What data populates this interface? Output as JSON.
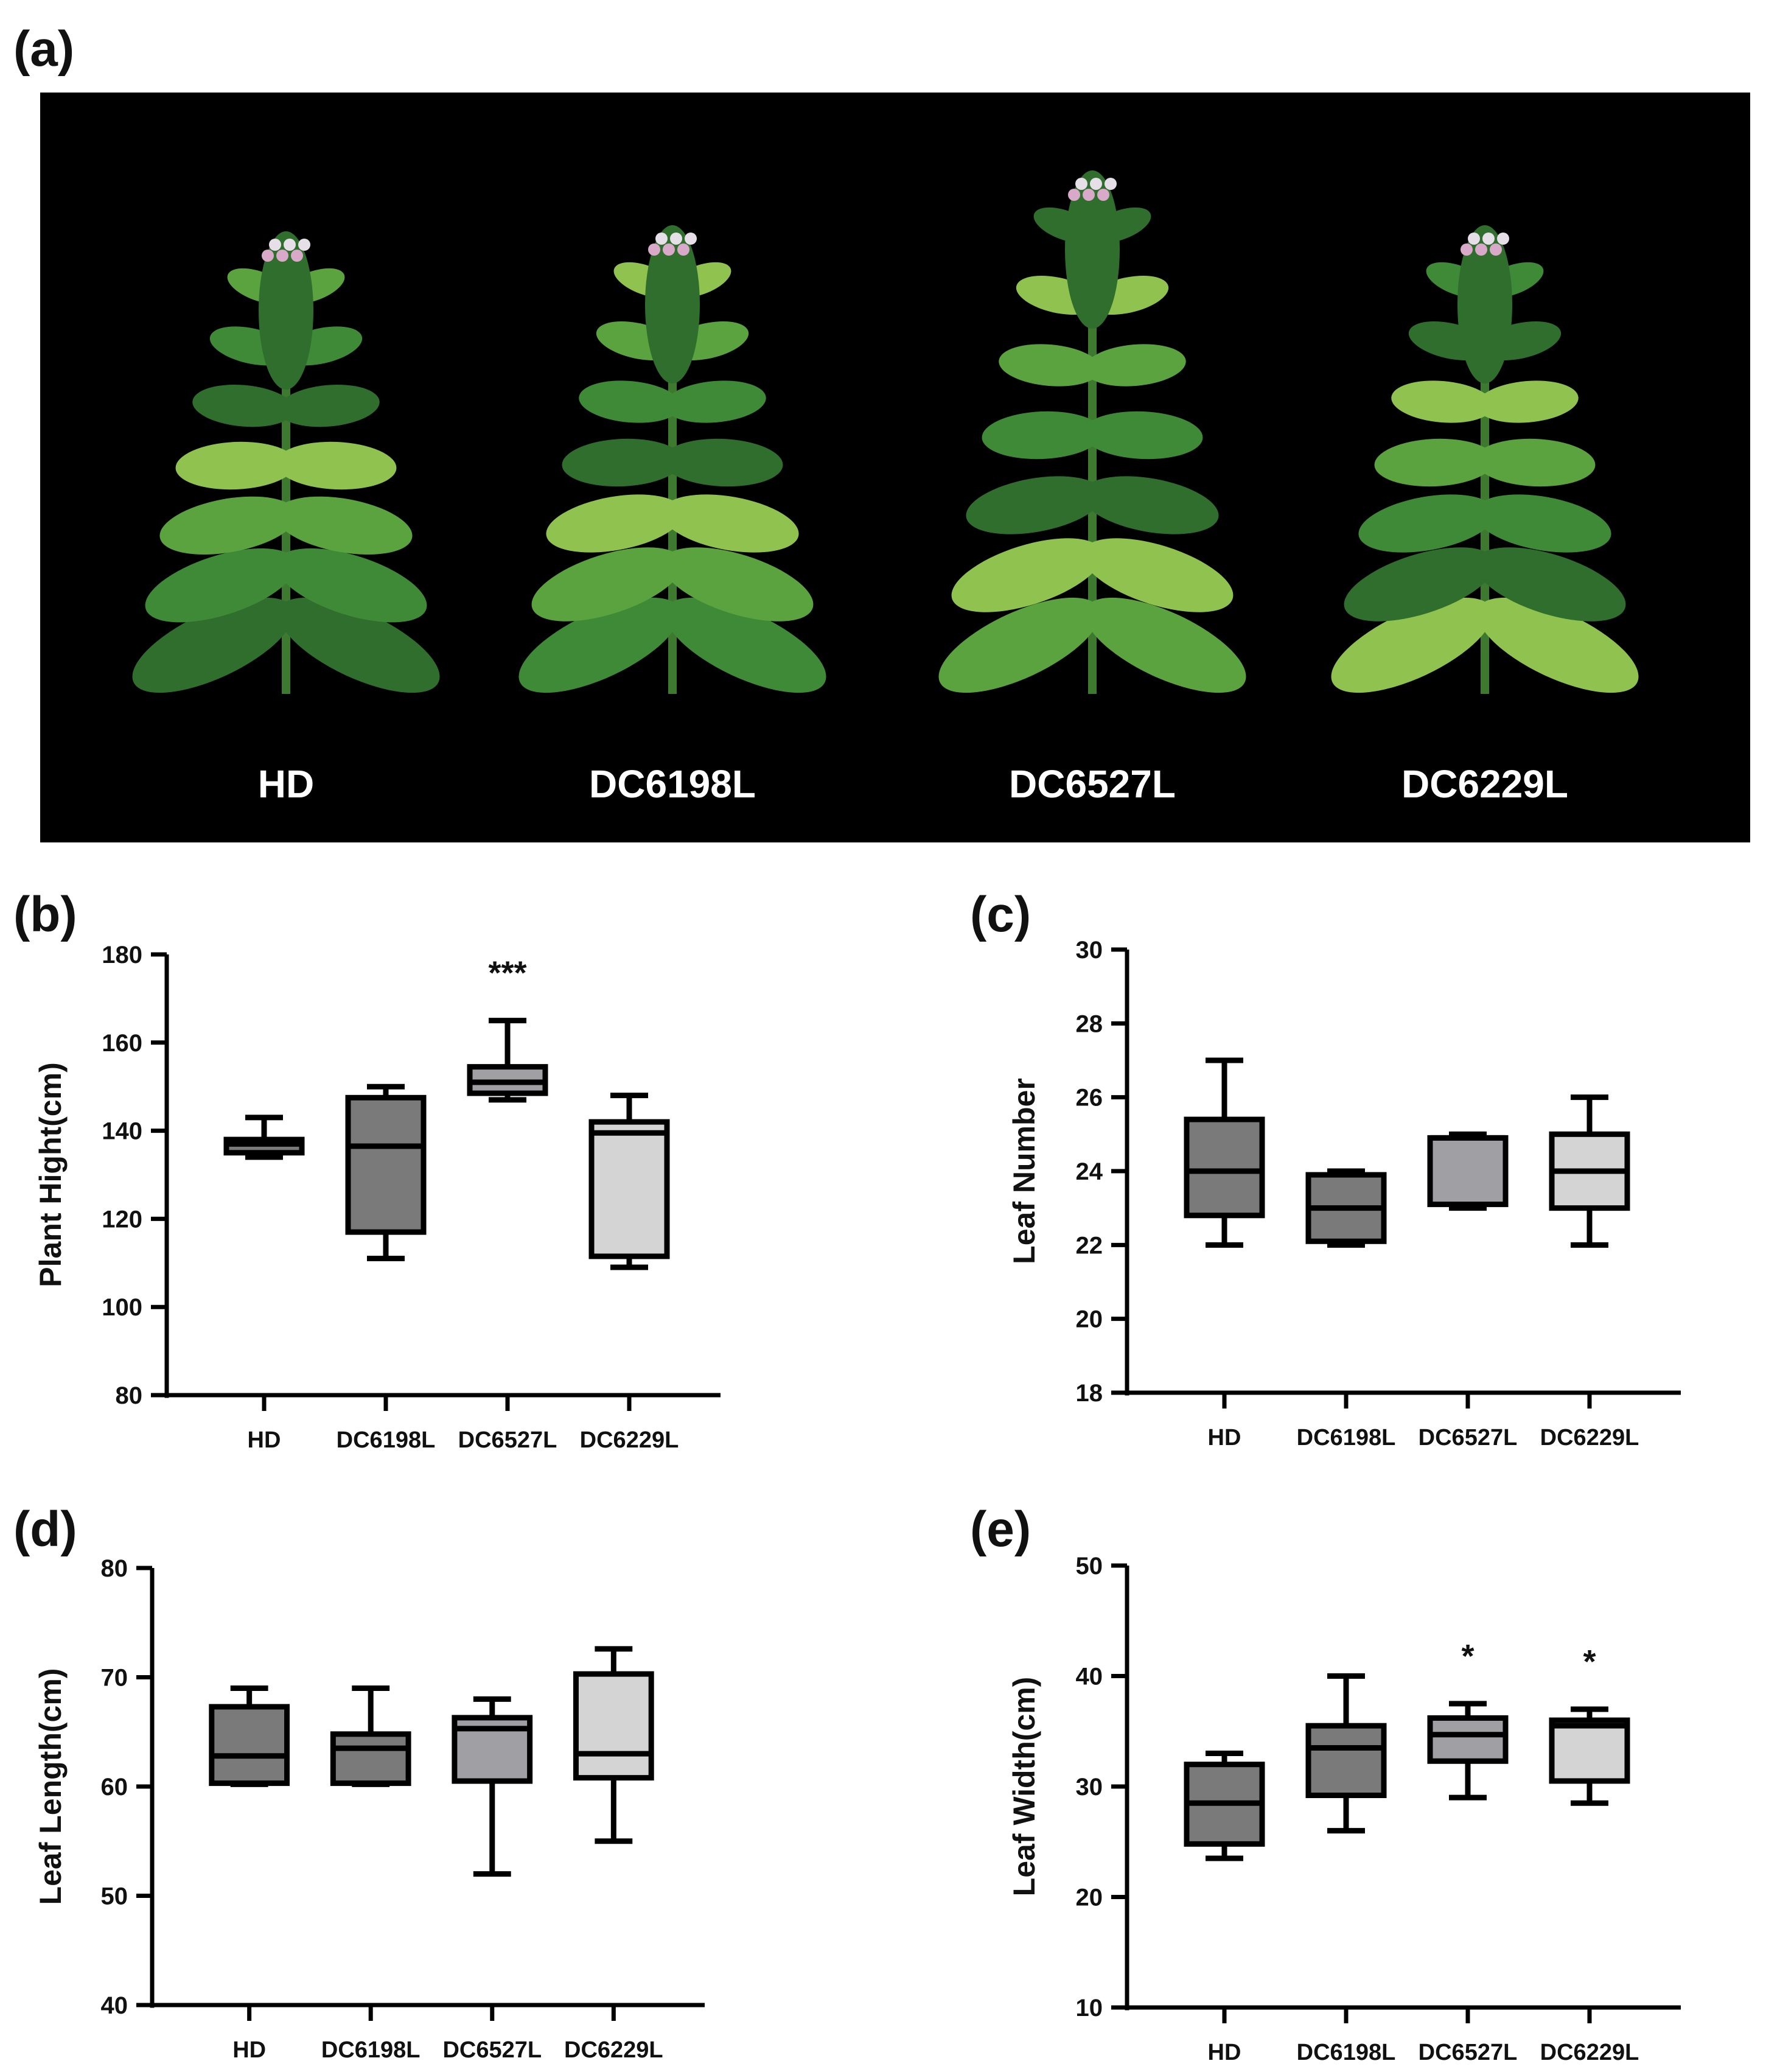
{
  "photo_panel": {
    "letter": "(a)",
    "labels": [
      "HD",
      "DC6198L",
      "DC6527L",
      "DC6229L"
    ],
    "background_color": "#000000",
    "leaf_colors": [
      "#2f6e2c",
      "#3f8a36",
      "#5aa33f",
      "#8fc24e"
    ]
  },
  "chart_data": [
    {
      "panel": "(b)",
      "type": "box",
      "categories": [
        "HD",
        "DC6198L",
        "DC6527L",
        "DC6229L"
      ],
      "ylabel": "Plant Hight(cm)",
      "ylim": [
        80,
        180
      ],
      "yticks": [
        80,
        100,
        120,
        140,
        160,
        180
      ],
      "boxes": [
        {
          "min": 134,
          "q1": 135,
          "median": 137,
          "q3": 138,
          "max": 143,
          "fill": "#7a7a7a",
          "sig": ""
        },
        {
          "min": 111,
          "q1": 117,
          "median": 136.5,
          "q3": 147.5,
          "max": 150,
          "fill": "#7a7a7a",
          "sig": ""
        },
        {
          "min": 147,
          "q1": 148.5,
          "median": 151,
          "q3": 154.5,
          "max": 165,
          "fill": "#a0a0a4",
          "sig": "***"
        },
        {
          "min": 109,
          "q1": 111.5,
          "median": 139.5,
          "q3": 142,
          "max": 148,
          "fill": "#d4d4d4",
          "sig": ""
        }
      ]
    },
    {
      "panel": "(c)",
      "type": "box",
      "categories": [
        "HD",
        "DC6198L",
        "DC6527L",
        "DC6229L"
      ],
      "ylabel": "Leaf Number",
      "ylim": [
        18,
        30
      ],
      "yticks": [
        18,
        20,
        22,
        24,
        26,
        28,
        30
      ],
      "boxes": [
        {
          "min": 22,
          "q1": 22.8,
          "median": 24,
          "q3": 25.4,
          "max": 27,
          "fill": "#7a7a7a",
          "sig": ""
        },
        {
          "min": 22,
          "q1": 22.1,
          "median": 23,
          "q3": 23.9,
          "max": 24,
          "fill": "#7a7a7a",
          "sig": ""
        },
        {
          "min": 23,
          "q1": 23.1,
          "median": 24.9,
          "q3": 24.9,
          "max": 25,
          "fill": "#a0a0a4",
          "sig": ""
        },
        {
          "min": 22,
          "q1": 23,
          "median": 24,
          "q3": 25,
          "max": 26,
          "fill": "#d4d4d4",
          "sig": ""
        }
      ]
    },
    {
      "panel": "(d)",
      "type": "box",
      "categories": [
        "HD",
        "DC6198L",
        "DC6527L",
        "DC6229L"
      ],
      "ylabel": "Leaf Length(cm)",
      "ylim": [
        40,
        80
      ],
      "yticks": [
        40,
        50,
        60,
        70,
        80
      ],
      "boxes": [
        {
          "min": 60.2,
          "q1": 60.3,
          "median": 62.8,
          "q3": 67.3,
          "max": 69,
          "fill": "#7a7a7a",
          "sig": ""
        },
        {
          "min": 60.2,
          "q1": 60.3,
          "median": 63.5,
          "q3": 64.8,
          "max": 69,
          "fill": "#7a7a7a",
          "sig": ""
        },
        {
          "min": 52,
          "q1": 60.5,
          "median": 65.3,
          "q3": 66.3,
          "max": 68,
          "fill": "#a0a0a4",
          "sig": ""
        },
        {
          "min": 55,
          "q1": 60.8,
          "median": 63,
          "q3": 70.3,
          "max": 72.6,
          "fill": "#d4d4d4",
          "sig": ""
        }
      ]
    },
    {
      "panel": "(e)",
      "type": "box",
      "categories": [
        "HD",
        "DC6198L",
        "DC6527L",
        "DC6229L"
      ],
      "ylabel": "Leaf Width(cm)",
      "ylim": [
        10,
        50
      ],
      "yticks": [
        10,
        20,
        30,
        40,
        50
      ],
      "boxes": [
        {
          "min": 23.5,
          "q1": 24.8,
          "median": 28.5,
          "q3": 32,
          "max": 33,
          "fill": "#7a7a7a",
          "sig": ""
        },
        {
          "min": 26,
          "q1": 29.2,
          "median": 33.5,
          "q3": 35.5,
          "max": 40,
          "fill": "#7a7a7a",
          "sig": ""
        },
        {
          "min": 29,
          "q1": 32.3,
          "median": 34.7,
          "q3": 36.2,
          "max": 37.5,
          "fill": "#a0a0a4",
          "sig": "*"
        },
        {
          "min": 28.5,
          "q1": 30.5,
          "median": 35.5,
          "q3": 36,
          "max": 37,
          "fill": "#d4d4d4",
          "sig": "*"
        }
      ]
    }
  ]
}
